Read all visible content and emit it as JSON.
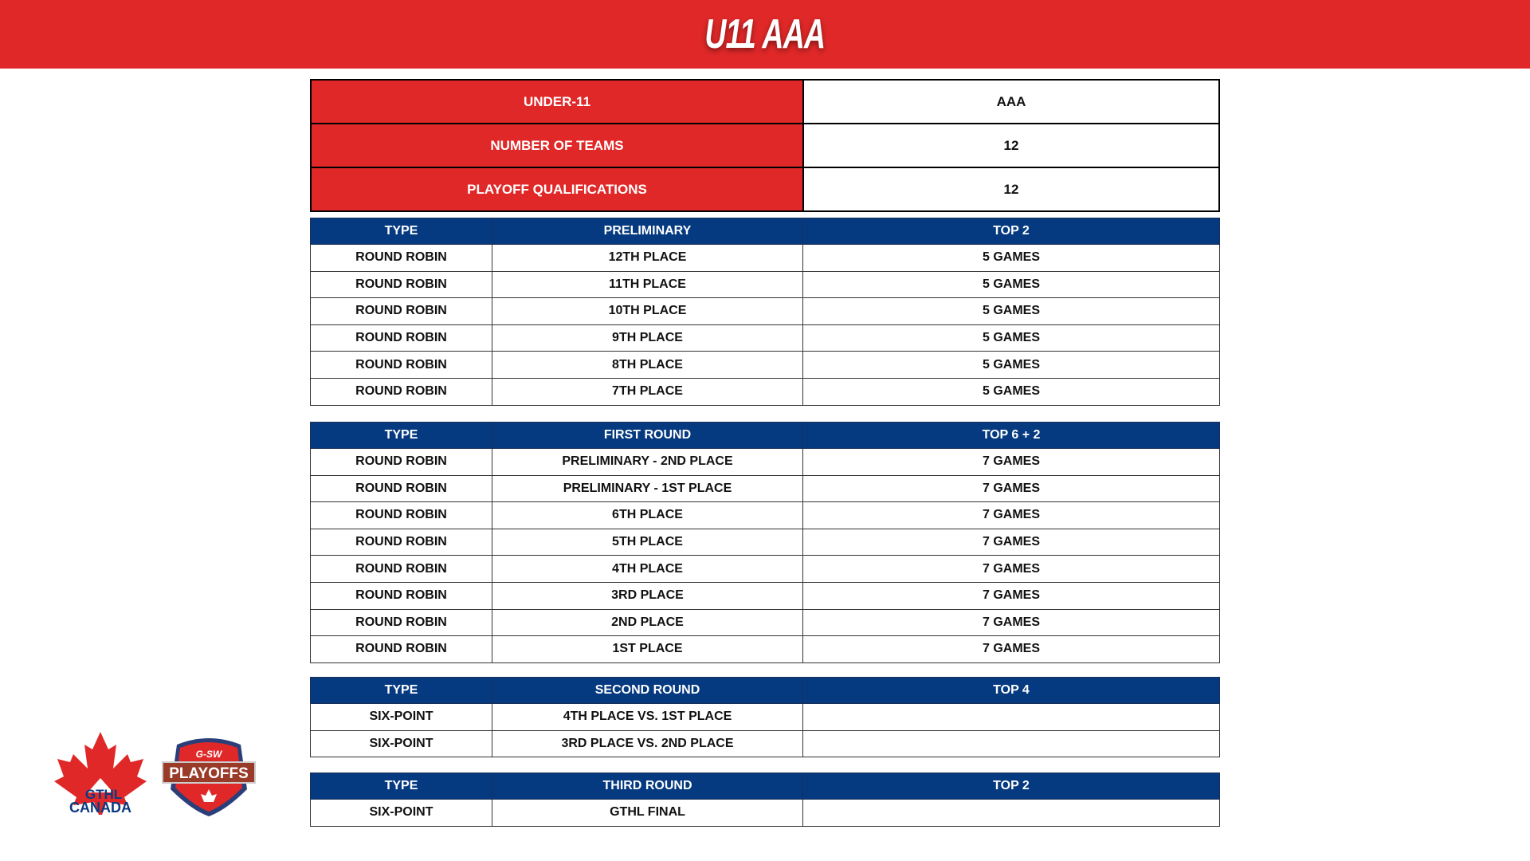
{
  "title": "U11 AAA",
  "summary": [
    {
      "label": "UNDER-11",
      "value": "AAA"
    },
    {
      "label": "NUMBER OF TEAMS",
      "value": "12"
    },
    {
      "label": "PLAYOFF QUALIFICATIONS",
      "value": "12"
    }
  ],
  "tables": [
    {
      "headers": [
        "TYPE",
        "PRELIMINARY",
        "TOP 2"
      ],
      "rows": [
        [
          "ROUND ROBIN",
          "12TH PLACE",
          "5 GAMES"
        ],
        [
          "ROUND ROBIN",
          "11TH PLACE",
          "5 GAMES"
        ],
        [
          "ROUND ROBIN",
          "10TH PLACE",
          "5 GAMES"
        ],
        [
          "ROUND ROBIN",
          "9TH PLACE",
          "5 GAMES"
        ],
        [
          "ROUND ROBIN",
          "8TH PLACE",
          "5 GAMES"
        ],
        [
          "ROUND ROBIN",
          "7TH PLACE",
          "5 GAMES"
        ]
      ]
    },
    {
      "headers": [
        "TYPE",
        "FIRST ROUND",
        "TOP 6  + 2"
      ],
      "rows": [
        [
          "ROUND ROBIN",
          "PRELIMINARY - 2ND PLACE",
          "7 GAMES"
        ],
        [
          "ROUND ROBIN",
          "PRELIMINARY - 1ST PLACE",
          "7 GAMES"
        ],
        [
          "ROUND ROBIN",
          "6TH PLACE",
          "7 GAMES"
        ],
        [
          "ROUND ROBIN",
          "5TH PLACE",
          "7 GAMES"
        ],
        [
          "ROUND ROBIN",
          "4TH PLACE",
          "7 GAMES"
        ],
        [
          "ROUND ROBIN",
          "3RD PLACE",
          "7 GAMES"
        ],
        [
          "ROUND ROBIN",
          "2ND PLACE",
          "7 GAMES"
        ],
        [
          "ROUND ROBIN",
          "1ST PLACE",
          "7 GAMES"
        ]
      ]
    },
    {
      "headers": [
        "TYPE",
        "SECOND ROUND",
        "TOP 4"
      ],
      "rows": [
        [
          "SIX-POINT",
          "4TH PLACE VS. 1ST PLACE",
          ""
        ],
        [
          "SIX-POINT",
          "3RD PLACE VS. 2ND PLACE",
          ""
        ]
      ]
    },
    {
      "headers": [
        "TYPE",
        "THIRD ROUND",
        "TOP 2"
      ],
      "rows": [
        [
          "SIX-POINT",
          "GTHL FINAL",
          ""
        ]
      ]
    }
  ],
  "logos": {
    "gthl": "GTHL CANADA",
    "playoffs_top": "G-SW",
    "playoffs_main": "PLAYOFFS"
  },
  "colors": {
    "red": "#e02828",
    "blue": "#063a80"
  }
}
